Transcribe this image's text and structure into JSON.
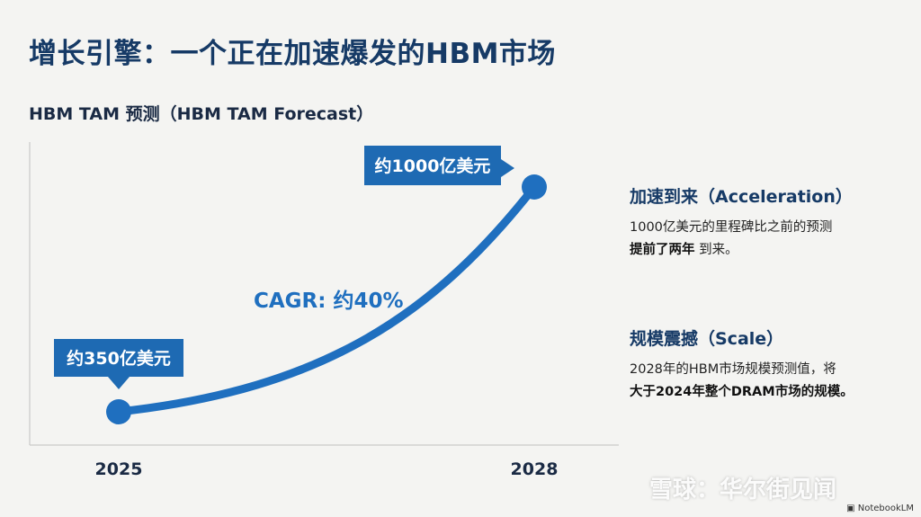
{
  "slide": {
    "title": "增长引擎：一个正在加速爆发的HBM市场"
  },
  "chart_data": {
    "type": "line",
    "title": "HBM TAM 预测（HBM TAM Forecast）",
    "x": [
      "2025",
      "2028"
    ],
    "series": [
      {
        "values": [
          350,
          1000
        ],
        "unit": "亿美元"
      }
    ],
    "point_labels": [
      "约350亿美元",
      "约1000亿美元"
    ],
    "annotation": "CAGR: 约40%",
    "grid": false,
    "accent_color": "#1f6fbf",
    "label_box_color": "#1e6ab3"
  },
  "sidebar": {
    "acceleration": {
      "heading": "加速到来（Acceleration）",
      "line1": "1000亿美元的里程碑比之前的预测",
      "line2_bold": "提前了两年",
      "line2_rest": " 到来。"
    },
    "scale": {
      "heading": "规模震撼（Scale）",
      "line1": "2028年的HBM市场规模预测值，将",
      "line2_bold": "大于2024年整个DRAM市场的规模。"
    }
  },
  "watermark": "雪球：华尔街见闻",
  "credit": "NotebookLM"
}
